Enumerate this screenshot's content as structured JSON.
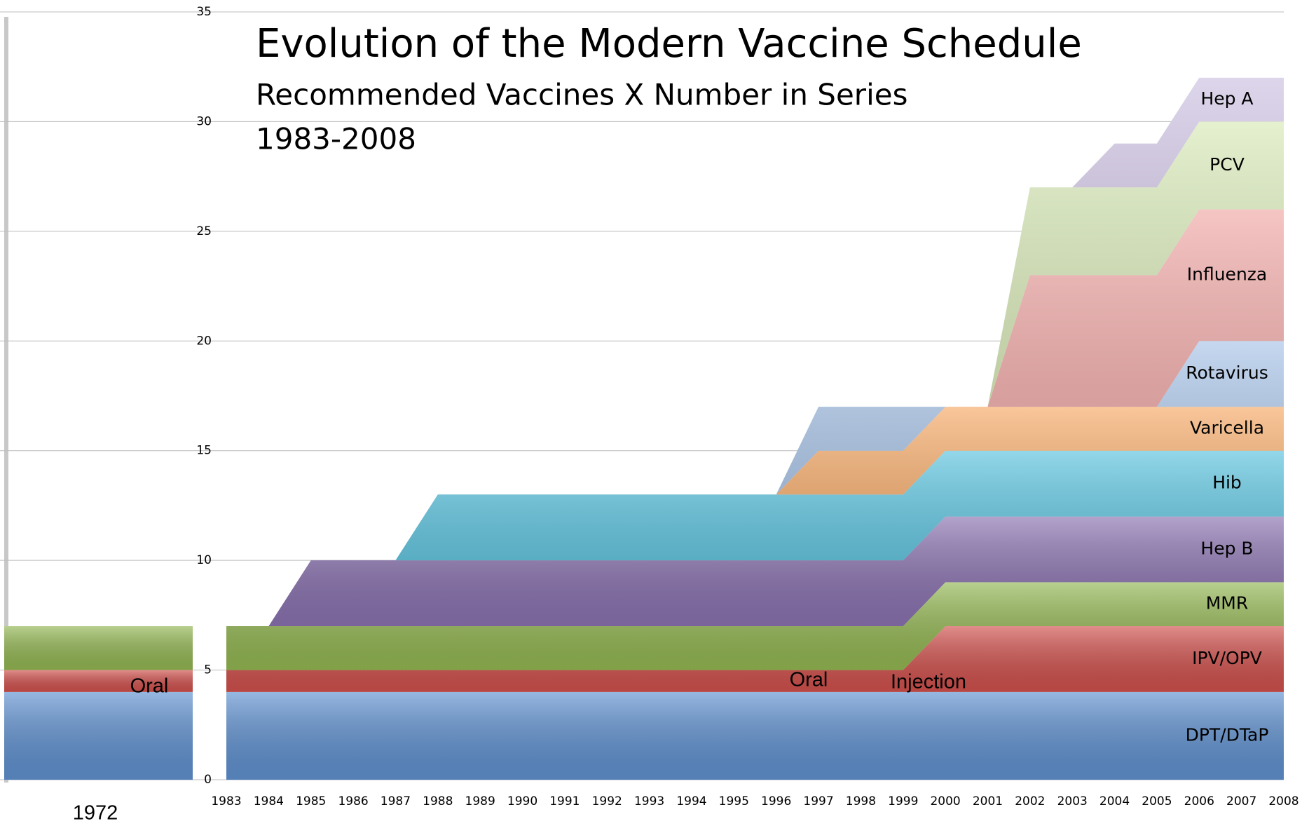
{
  "chart_data": [
    {
      "type": "stacked_area",
      "title": "Evolution of the Modern Vaccine Schedule",
      "subtitle": "Recommended Vaccines X Number in Series",
      "subtitle2": "1983-2008",
      "categories": [
        "1983",
        "1984",
        "1985",
        "1986",
        "1987",
        "1988",
        "1989",
        "1990",
        "1991",
        "1992",
        "1993",
        "1994",
        "1995",
        "1996",
        "1997",
        "1998",
        "1999",
        "2000",
        "2001",
        "2002",
        "2003",
        "2004",
        "2005",
        "2006",
        "2007",
        "2008"
      ],
      "series": [
        {
          "name": "DPT/DTaP",
          "color": "#5f91d0",
          "values": [
            4,
            4,
            4,
            4,
            4,
            4,
            4,
            4,
            4,
            4,
            4,
            4,
            4,
            4,
            4,
            4,
            4,
            4,
            4,
            4,
            4,
            4,
            4,
            4,
            4,
            4
          ]
        },
        {
          "name": "IPV/OPV",
          "color": "#d0504c",
          "values": [
            1,
            1,
            1,
            1,
            1,
            1,
            1,
            1,
            1,
            1,
            1,
            1,
            1,
            1,
            1,
            1,
            1,
            3,
            3,
            3,
            3,
            3,
            3,
            3,
            3,
            3
          ]
        },
        {
          "name": "MMR",
          "color": "#93b752",
          "values": [
            2,
            2,
            2,
            2,
            2,
            2,
            2,
            2,
            2,
            2,
            2,
            2,
            2,
            2,
            2,
            2,
            2,
            2,
            2,
            2,
            2,
            2,
            2,
            2,
            2,
            2
          ]
        },
        {
          "name": "Hep B",
          "color": "#8a72b0",
          "values": [
            0,
            0,
            3,
            3,
            3,
            3,
            3,
            3,
            3,
            3,
            3,
            3,
            3,
            3,
            3,
            3,
            3,
            3,
            3,
            3,
            3,
            3,
            3,
            3,
            3,
            3
          ]
        },
        {
          "name": "Hib",
          "color": "#58c2de",
          "values": [
            0,
            0,
            0,
            0,
            0,
            3,
            3,
            3,
            3,
            3,
            3,
            3,
            3,
            3,
            3,
            3,
            3,
            3,
            3,
            3,
            3,
            3,
            3,
            3,
            3,
            3
          ]
        },
        {
          "name": "Varicella",
          "color": "#f6a864",
          "values": [
            0,
            0,
            0,
            0,
            0,
            0,
            0,
            0,
            0,
            0,
            0,
            0,
            0,
            0,
            2,
            2,
            2,
            2,
            2,
            2,
            2,
            2,
            2,
            2,
            2,
            2
          ]
        },
        {
          "name": "Rotavirus",
          "color": "#a7c3e8",
          "values": [
            0,
            0,
            0,
            0,
            0,
            0,
            0,
            0,
            0,
            0,
            0,
            0,
            0,
            0,
            2,
            2,
            2,
            0,
            0,
            0,
            0,
            0,
            0,
            3,
            3,
            3
          ]
        },
        {
          "name": "Influenza",
          "color": "#f0a6a4",
          "values": [
            0,
            0,
            0,
            0,
            0,
            0,
            0,
            0,
            0,
            0,
            0,
            0,
            0,
            0,
            0,
            0,
            0,
            0,
            0,
            6,
            6,
            6,
            6,
            6,
            6,
            6
          ]
        },
        {
          "name": "PCV",
          "color": "#d6e8b4",
          "values": [
            0,
            0,
            0,
            0,
            0,
            0,
            0,
            0,
            0,
            0,
            0,
            0,
            0,
            0,
            0,
            0,
            0,
            0,
            0,
            4,
            4,
            4,
            4,
            4,
            4,
            4
          ]
        },
        {
          "name": "Hep A",
          "color": "#cbbfe0",
          "values": [
            0,
            0,
            0,
            0,
            0,
            0,
            0,
            0,
            0,
            0,
            0,
            0,
            0,
            0,
            0,
            0,
            0,
            0,
            0,
            0,
            0,
            2,
            2,
            2,
            2,
            2
          ]
        }
      ],
      "annotations": [
        "Oral",
        "Injection"
      ],
      "ylim": [
        0,
        35
      ],
      "yticks": [
        0,
        5,
        10,
        15,
        20,
        25,
        30,
        35
      ],
      "grid": true
    },
    {
      "type": "stacked_column",
      "categories": [
        "1972"
      ],
      "series": [
        {
          "color": "#5f91d0",
          "values": [
            4
          ]
        },
        {
          "color": "#d0504c",
          "values": [
            1
          ]
        },
        {
          "color": "#93b752",
          "values": [
            2
          ]
        }
      ],
      "annotations": [
        "Oral"
      ],
      "ylim": [
        0,
        35
      ]
    }
  ]
}
